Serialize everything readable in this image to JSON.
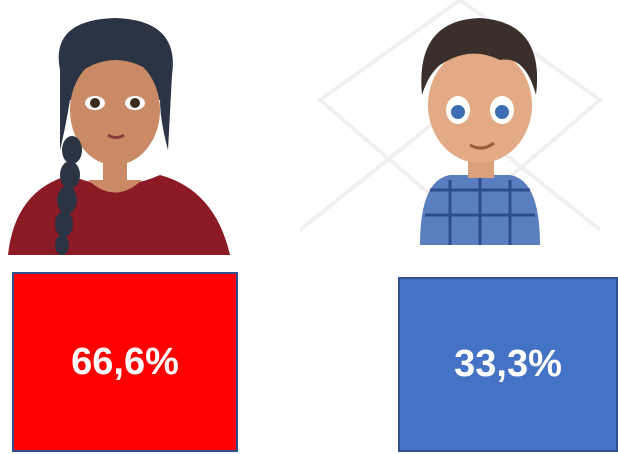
{
  "panels": [
    {
      "label": "66,6%"
    },
    {
      "label": "33,3%"
    }
  ]
}
